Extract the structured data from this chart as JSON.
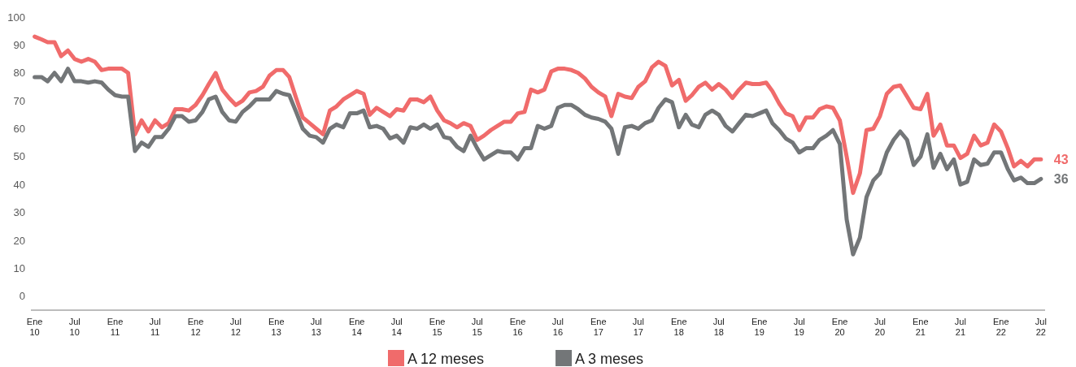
{
  "chart_data": {
    "type": "line",
    "ylim": [
      -5,
      100
    ],
    "yticks": [
      0,
      10,
      20,
      30,
      40,
      50,
      60,
      70,
      80,
      90,
      100
    ],
    "xlim": [
      "2009-12-15",
      "2022-07-20"
    ],
    "xticks": [
      {
        "value": "2010-01",
        "label": "Ene\n10"
      },
      {
        "value": "2010-07",
        "label": "Jul\n10"
      },
      {
        "value": "2011-01",
        "label": "Ene\n11"
      },
      {
        "value": "2011-07",
        "label": "Jul\n11"
      },
      {
        "value": "2012-01",
        "label": "Ene\n12"
      },
      {
        "value": "2012-07",
        "label": "Jul\n12"
      },
      {
        "value": "2013-01",
        "label": "Ene\n13"
      },
      {
        "value": "2013-07",
        "label": "Jul\n13"
      },
      {
        "value": "2014-01",
        "label": "Ene\n14"
      },
      {
        "value": "2014-07",
        "label": "Jul\n14"
      },
      {
        "value": "2015-01",
        "label": "Ene\n15"
      },
      {
        "value": "2015-07",
        "label": "Jul\n15"
      },
      {
        "value": "2016-01",
        "label": "Ene\n16"
      },
      {
        "value": "2016-07",
        "label": "Jul\n16"
      },
      {
        "value": "2017-01",
        "label": "Ene\n17"
      },
      {
        "value": "2017-07",
        "label": "Jul\n17"
      },
      {
        "value": "2018-01",
        "label": "Ene\n18"
      },
      {
        "value": "2018-07",
        "label": "Jul\n18"
      },
      {
        "value": "2019-01",
        "label": "Ene\n19"
      },
      {
        "value": "2019-07",
        "label": "Jul\n19"
      },
      {
        "value": "2020-01",
        "label": "Ene\n20"
      },
      {
        "value": "2020-07",
        "label": "Jul\n20"
      },
      {
        "value": "2021-01",
        "label": "Ene\n21"
      },
      {
        "value": "2021-07",
        "label": "Jul\n21"
      },
      {
        "value": "2022-01",
        "label": "Ene\n22"
      },
      {
        "value": "2022-07",
        "label": "Jul\n22"
      }
    ],
    "grid": false,
    "legend": "bottom",
    "marker": "none",
    "line_style": "solid",
    "x": [
      "2010-01",
      "2010-02",
      "2010-03",
      "2010-04",
      "2010-05",
      "2010-06",
      "2010-07",
      "2010-08",
      "2010-09",
      "2010-10",
      "2010-11",
      "2010-12",
      "2011-01",
      "2011-02",
      "2011-03",
      "2011-04",
      "2011-05",
      "2011-06",
      "2011-07",
      "2011-08",
      "2011-09",
      "2011-10",
      "2011-11",
      "2011-12",
      "2012-01",
      "2012-02",
      "2012-03",
      "2012-04",
      "2012-05",
      "2012-06",
      "2012-07",
      "2012-08",
      "2012-09",
      "2012-10",
      "2012-11",
      "2012-12",
      "2013-01",
      "2013-02",
      "2013-03",
      "2013-04",
      "2013-05",
      "2013-06",
      "2013-07",
      "2013-08",
      "2013-09",
      "2013-10",
      "2013-11",
      "2013-12",
      "2014-01",
      "2014-02",
      "2014-03",
      "2014-04",
      "2014-05",
      "2014-06",
      "2014-07",
      "2014-08",
      "2014-09",
      "2014-10",
      "2014-11",
      "2014-12",
      "2015-01",
      "2015-02",
      "2015-03",
      "2015-04",
      "2015-05",
      "2015-06",
      "2015-07",
      "2015-08",
      "2015-09",
      "2015-10",
      "2015-11",
      "2015-12",
      "2016-01",
      "2016-02",
      "2016-03",
      "2016-04",
      "2016-05",
      "2016-06",
      "2016-07",
      "2016-08",
      "2016-09",
      "2016-10",
      "2016-11",
      "2016-12",
      "2017-01",
      "2017-02",
      "2017-03",
      "2017-04",
      "2017-05",
      "2017-06",
      "2017-07",
      "2017-08",
      "2017-09",
      "2017-10",
      "2017-11",
      "2017-12",
      "2018-01",
      "2018-02",
      "2018-03",
      "2018-04",
      "2018-05",
      "2018-06",
      "2018-07",
      "2018-08",
      "2018-09",
      "2018-10",
      "2018-11",
      "2018-12",
      "2019-01",
      "2019-02",
      "2019-03",
      "2019-04",
      "2019-05",
      "2019-06",
      "2019-07",
      "2019-08",
      "2019-09",
      "2019-10",
      "2019-11",
      "2019-12",
      "2020-01",
      "2020-02",
      "2020-03",
      "2020-04",
      "2020-05",
      "2020-06",
      "2020-07",
      "2020-08",
      "2020-09",
      "2020-10",
      "2020-11",
      "2020-12",
      "2021-01",
      "2021-02",
      "2021-03",
      "2021-04",
      "2021-05",
      "2021-06",
      "2021-07",
      "2021-08",
      "2021-09",
      "2021-10",
      "2021-11",
      "2021-12",
      "2022-01",
      "2022-02",
      "2022-03",
      "2022-04",
      "2022-05",
      "2022-06",
      "2022-07"
    ],
    "annotations": [
      "43",
      "36"
    ],
    "series": [
      {
        "name": "A 12 meses",
        "color": "#f06b6b",
        "values": [
          93,
          92,
          91,
          91,
          86,
          88,
          85,
          84,
          85,
          84,
          81,
          81.5,
          81.5,
          81.5,
          80,
          58,
          63,
          59,
          63,
          60.5,
          62,
          67,
          67,
          66.5,
          68.5,
          72,
          76,
          80,
          74,
          71,
          68.5,
          70,
          73,
          73.5,
          75,
          79,
          81,
          81,
          78.5,
          71,
          64,
          62,
          60,
          58,
          66.5,
          68,
          70.5,
          72,
          73.5,
          72.5,
          65,
          67.5,
          66,
          64.5,
          67,
          66.5,
          70.5,
          70.5,
          69.5,
          71.5,
          66.5,
          63,
          62,
          60.5,
          62,
          61,
          56,
          57.5,
          59.5,
          61,
          62.5,
          62.5,
          65.5,
          66,
          74,
          73,
          74,
          80.5,
          81.5,
          81.5,
          81,
          80,
          78,
          75,
          73,
          71.5,
          64.5,
          72.5,
          71.5,
          71,
          75,
          77,
          82,
          84,
          82.5,
          75.5,
          77.5,
          70,
          72,
          75,
          76.5,
          74,
          76,
          74,
          71,
          74,
          76.5,
          76,
          76,
          76.5,
          73.5,
          69,
          65.5,
          64.5,
          59.5,
          64,
          64,
          67,
          68,
          67.5,
          63,
          50,
          37,
          44,
          59.5,
          60,
          64.5,
          72.5,
          75,
          75.5,
          71.5,
          67.5,
          67,
          72.5,
          57.5,
          61.5,
          54,
          54,
          49.5,
          51,
          57.5,
          54,
          55,
          61.5,
          59,
          53,
          46.5,
          48.5,
          46.5,
          49,
          49
        ]
      },
      {
        "name": "A 3 meses",
        "color": "#737678",
        "values": [
          78.5,
          78.5,
          77,
          80,
          77,
          81.5,
          77,
          77,
          76.5,
          77,
          76.5,
          74,
          72,
          71.5,
          71.5,
          52,
          55,
          53.5,
          57,
          57,
          60,
          64.5,
          64.5,
          62.5,
          63,
          66,
          70.5,
          71.5,
          66,
          63,
          62.5,
          66,
          68,
          70.5,
          70.5,
          70.5,
          73.5,
          72.5,
          72,
          66,
          60,
          57.5,
          57,
          55,
          60,
          61.5,
          60.5,
          65.5,
          65.5,
          66.5,
          60.5,
          61,
          60,
          56.5,
          57.5,
          55,
          60.5,
          60,
          61.5,
          60,
          61.5,
          57,
          56.5,
          53.5,
          52,
          57.5,
          53,
          49,
          50.5,
          52,
          51.5,
          51.5,
          49,
          53,
          53,
          61,
          60,
          61,
          67.5,
          68.5,
          68.5,
          67,
          65,
          64,
          63.5,
          62.5,
          60,
          51,
          60.5,
          61,
          60,
          62,
          63,
          67.5,
          70.5,
          69.5,
          60.5,
          65,
          61.5,
          60.5,
          65,
          66.5,
          65,
          61,
          59,
          62,
          65,
          64.5,
          65.5,
          66.5,
          62,
          59.5,
          56.5,
          55,
          51.5,
          53,
          53,
          56,
          57.5,
          59.5,
          54.5,
          27.5,
          15,
          21,
          35.5,
          41.5,
          44,
          51.5,
          56,
          59,
          56,
          47,
          50,
          58,
          46,
          51,
          45.5,
          49,
          40,
          41,
          49,
          47,
          47.5,
          51.5,
          51.5,
          45.5,
          41.5,
          42.5,
          40.5,
          40.5,
          42
        ]
      }
    ]
  }
}
